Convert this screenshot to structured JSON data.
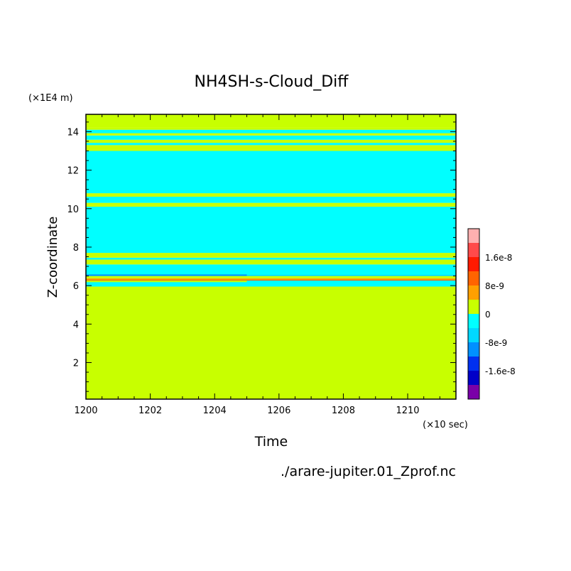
{
  "chart_data": {
    "type": "heatmap",
    "title": "NH4SH-s-Cloud_Diff",
    "xlabel": "Time",
    "ylabel": "Z-coordinate",
    "x_unit": "(×10 sec)",
    "y_unit": "(×1E4 m)",
    "source": "./arare-jupiter.01_Zprof.nc",
    "xlim": [
      1200,
      1211.5
    ],
    "ylim": [
      0.1,
      14.9
    ],
    "x_ticks": [
      "1200",
      "1202",
      "1204",
      "1206",
      "1208",
      "1210"
    ],
    "y_ticks": [
      "2",
      "4",
      "6",
      "8",
      "10",
      "12",
      "14"
    ],
    "colorbar": {
      "levels": [
        -2.4e-08,
        -2e-08,
        -1.6e-08,
        -1.2e-08,
        -8e-09,
        -4e-09,
        0,
        4e-09,
        8e-09,
        1.2e-08,
        1.6e-08,
        2e-08,
        2.4e-08
      ],
      "colors": [
        "#7a00a8",
        "#0000c8",
        "#0030f0",
        "#0090ff",
        "#00d8ff",
        "#00ffff",
        "#c8ff00",
        "#ffa000",
        "#ff6400",
        "#ff1a00",
        "#ff4a4a",
        "#ffb0b0"
      ],
      "tick_labels": [
        "1.6e-8",
        "8e-9",
        "0",
        "-8e-9",
        "-1.6e-8"
      ]
    },
    "bands": [
      {
        "y0": 0.1,
        "y1": 5.95,
        "color": "#c8ff00"
      },
      {
        "y0": 5.95,
        "y1": 6.3,
        "color": "#00ffff"
      },
      {
        "y0": 6.3,
        "y1": 6.38,
        "color": "#ffa000"
      },
      {
        "y0": 6.38,
        "y1": 6.5,
        "color": "#c8ff00"
      },
      {
        "y0": 6.5,
        "y1": 6.65,
        "color": "#00ffff"
      },
      {
        "y0": 6.65,
        "y1": 7.1,
        "color": "#00ffff"
      },
      {
        "y0": 7.1,
        "y1": 7.35,
        "color": "#c8ff00"
      },
      {
        "y0": 7.35,
        "y1": 7.45,
        "color": "#00ffff"
      },
      {
        "y0": 7.45,
        "y1": 7.7,
        "color": "#c8ff00"
      },
      {
        "y0": 7.7,
        "y1": 10.1,
        "color": "#00ffff"
      },
      {
        "y0": 10.1,
        "y1": 10.3,
        "color": "#c8ff00"
      },
      {
        "y0": 10.3,
        "y1": 10.62,
        "color": "#00ffff"
      },
      {
        "y0": 10.62,
        "y1": 10.8,
        "color": "#c8ff00"
      },
      {
        "y0": 10.8,
        "y1": 13.0,
        "color": "#00ffff"
      },
      {
        "y0": 13.0,
        "y1": 13.3,
        "color": "#c8ff00"
      },
      {
        "y0": 13.3,
        "y1": 13.42,
        "color": "#00ffff"
      },
      {
        "y0": 13.42,
        "y1": 13.58,
        "color": "#c8ff00"
      },
      {
        "y0": 13.58,
        "y1": 13.8,
        "color": "#00ffff"
      },
      {
        "y0": 13.8,
        "y1": 13.92,
        "color": "#c8ff00"
      },
      {
        "y0": 13.92,
        "y1": 14.1,
        "color": "#00ffff"
      },
      {
        "y0": 14.1,
        "y1": 14.22,
        "color": "#c8ff00"
      },
      {
        "y0": 14.22,
        "y1": 14.9,
        "color": "#c8ff00"
      }
    ],
    "patches": [
      {
        "x0": 1200,
        "x1": 1205,
        "y0": 6.5,
        "y1": 6.58,
        "color": "#0090ff"
      },
      {
        "x0": 1205,
        "x1": 1211.5,
        "y0": 6.5,
        "y1": 6.56,
        "color": "#00d8ff"
      },
      {
        "x0": 1200,
        "x1": 1211.5,
        "y0": 6.26,
        "y1": 6.3,
        "color": "#ff6400"
      },
      {
        "x0": 1200,
        "x1": 1205,
        "y0": 6.18,
        "y1": 6.26,
        "color": "#c8ff00"
      }
    ]
  }
}
